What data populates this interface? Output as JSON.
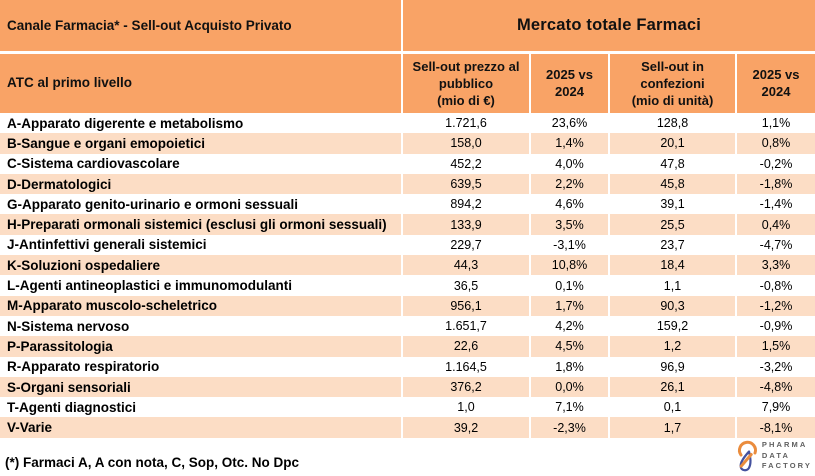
{
  "colors": {
    "header_orange": "#F9A366",
    "row_peach": "#FCDDC5",
    "row_white": "#FFFFFF",
    "grid_line": "#FFFFFF",
    "text": "#111111",
    "logo_orange": "#EA8C3D",
    "logo_blue": "#44519E",
    "logo_text_gray": "#606060"
  },
  "table": {
    "top_left_title": "Canale Farmacia* - Sell-out Acquisto Privato",
    "main_title": "Mercato totale Farmaci",
    "columns": [
      "ATC al primo livello",
      "Sell-out prezzo al\npubblico\n(mio di €)",
      "2025 vs\n2024",
      "Sell-out in\nconfezioni\n(mio di unità)",
      "2025 vs\n2024"
    ]
  },
  "footnote": "(*) Farmaci A, A con nota, C, Sop, Otc. No Dpc",
  "logo": {
    "name": "Pharma Data Factory",
    "lines": [
      "PHARMA",
      "DATA",
      "FACTORY"
    ]
  },
  "chart_data": {
    "type": "table",
    "title": "Mercato totale Farmaci",
    "subtitle": "Canale Farmacia* - Sell-out Acquisto Privato",
    "columns": [
      "ATC al primo livello",
      "Sell-out prezzo al pubblico (mio di €)",
      "2025 vs 2024",
      "Sell-out in confezioni (mio di unità)",
      "2025 vs 2024"
    ],
    "rows": [
      [
        "A-Apparato digerente e metabolismo",
        "1.721,6",
        "23,6%",
        "128,8",
        "1,1%"
      ],
      [
        "B-Sangue e organi emopoietici",
        "158,0",
        "1,4%",
        "20,1",
        "0,8%"
      ],
      [
        "C-Sistema cardiovascolare",
        "452,2",
        "4,0%",
        "47,8",
        "-0,2%"
      ],
      [
        "D-Dermatologici",
        "639,5",
        "2,2%",
        "45,8",
        "-1,8%"
      ],
      [
        "G-Apparato genito-urinario e ormoni sessuali",
        "894,2",
        "4,6%",
        "39,1",
        "-1,4%"
      ],
      [
        "H-Preparati ormonali sistemici (esclusi gli ormoni sessuali)",
        "133,9",
        "3,5%",
        "25,5",
        "0,4%"
      ],
      [
        "J-Antinfettivi generali sistemici",
        "229,7",
        "-3,1%",
        "23,7",
        "-4,7%"
      ],
      [
        "K-Soluzioni ospedaliere",
        "44,3",
        "10,8%",
        "18,4",
        "3,3%"
      ],
      [
        "L-Agenti antineoplastici e immunomodulanti",
        "36,5",
        "0,1%",
        "1,1",
        "-0,8%"
      ],
      [
        "M-Apparato muscolo-scheletrico",
        "956,1",
        "1,7%",
        "90,3",
        "-1,2%"
      ],
      [
        "N-Sistema nervoso",
        "1.651,7",
        "4,2%",
        "159,2",
        "-0,9%"
      ],
      [
        "P-Parassitologia",
        "22,6",
        "4,5%",
        "1,2",
        "1,5%"
      ],
      [
        "R-Apparato respiratorio",
        "1.164,5",
        "1,8%",
        "96,9",
        "-3,2%"
      ],
      [
        "S-Organi sensoriali",
        "376,2",
        "0,0%",
        "26,1",
        "-4,8%"
      ],
      [
        "T-Agenti diagnostici",
        "1,0",
        "7,1%",
        "0,1",
        "7,9%"
      ],
      [
        "V-Varie",
        "39,2",
        "-2,3%",
        "1,7",
        "-8,1%"
      ]
    ],
    "notes": "(*) Farmaci A, A con nota, C, Sop, Otc. No Dpc",
    "source_logo": "Pharma Data Factory"
  }
}
